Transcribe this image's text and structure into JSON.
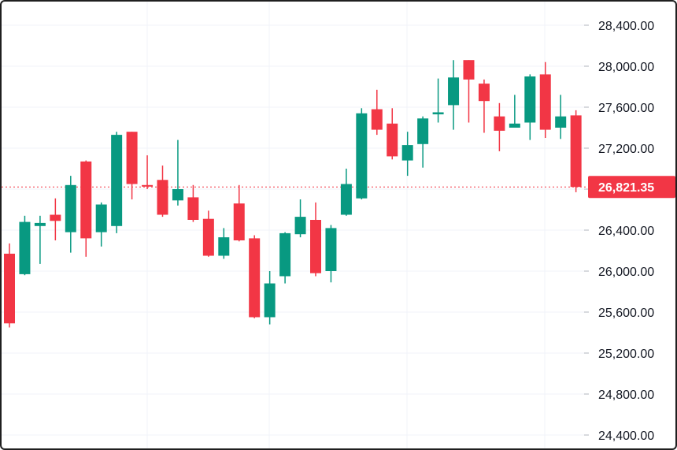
{
  "chart_data": {
    "type": "candlestick",
    "ylim": [
      24300,
      28500
    ],
    "y_ticks": [
      "28,400.00",
      "28,000.00",
      "27,600.00",
      "27,200.00",
      "26,800.00",
      "26,400.00",
      "26,000.00",
      "25,600.00",
      "25,200.00",
      "24,800.00",
      "24,400.00"
    ],
    "y_tick_values": [
      28400,
      28000,
      27600,
      27200,
      26800,
      26400,
      26000,
      25600,
      25200,
      24800,
      24400
    ],
    "last_price": 26821.35,
    "last_price_label": "26,821.35",
    "colors": {
      "up": "#089981",
      "down": "#f23645",
      "grid": "#f0f3fa",
      "axis_text": "#131722"
    },
    "candles": [
      {
        "o": 26170,
        "h": 26270,
        "l": 25450,
        "c": 25490
      },
      {
        "o": 25970,
        "h": 26540,
        "l": 25960,
        "c": 26480
      },
      {
        "o": 26440,
        "h": 26540,
        "l": 26070,
        "c": 26470
      },
      {
        "o": 26550,
        "h": 26710,
        "l": 26300,
        "c": 26490
      },
      {
        "o": 26380,
        "h": 26930,
        "l": 26180,
        "c": 26840
      },
      {
        "o": 27070,
        "h": 27080,
        "l": 26140,
        "c": 26320
      },
      {
        "o": 26380,
        "h": 26670,
        "l": 26240,
        "c": 26650
      },
      {
        "o": 26440,
        "h": 27360,
        "l": 26370,
        "c": 27330
      },
      {
        "o": 27360,
        "h": 27360,
        "l": 26700,
        "c": 26850
      },
      {
        "o": 26840,
        "h": 27130,
        "l": 26800,
        "c": 26830
      },
      {
        "o": 26890,
        "h": 27030,
        "l": 26530,
        "c": 26550
      },
      {
        "o": 26690,
        "h": 27280,
        "l": 26640,
        "c": 26800
      },
      {
        "o": 26720,
        "h": 26840,
        "l": 26480,
        "c": 26500
      },
      {
        "o": 26510,
        "h": 26590,
        "l": 26140,
        "c": 26150
      },
      {
        "o": 26150,
        "h": 26420,
        "l": 26120,
        "c": 26330
      },
      {
        "o": 26660,
        "h": 26840,
        "l": 26290,
        "c": 26300
      },
      {
        "o": 26320,
        "h": 26350,
        "l": 25540,
        "c": 25550
      },
      {
        "o": 25550,
        "h": 26000,
        "l": 25480,
        "c": 25880
      },
      {
        "o": 25950,
        "h": 26380,
        "l": 25880,
        "c": 26370
      },
      {
        "o": 26360,
        "h": 26700,
        "l": 26330,
        "c": 26530
      },
      {
        "o": 26500,
        "h": 26670,
        "l": 25950,
        "c": 25980
      },
      {
        "o": 26000,
        "h": 26450,
        "l": 25890,
        "c": 26420
      },
      {
        "o": 26550,
        "h": 27000,
        "l": 26540,
        "c": 26850
      },
      {
        "o": 26710,
        "h": 27590,
        "l": 26700,
        "c": 27540
      },
      {
        "o": 27580,
        "h": 27770,
        "l": 27330,
        "c": 27380
      },
      {
        "o": 27440,
        "h": 27590,
        "l": 27090,
        "c": 27120
      },
      {
        "o": 27080,
        "h": 27360,
        "l": 26930,
        "c": 27230
      },
      {
        "o": 27240,
        "h": 27510,
        "l": 27010,
        "c": 27490
      },
      {
        "o": 27530,
        "h": 27880,
        "l": 27450,
        "c": 27550
      },
      {
        "o": 27620,
        "h": 28060,
        "l": 27380,
        "c": 27890
      },
      {
        "o": 28060,
        "h": 28060,
        "l": 27450,
        "c": 27870
      },
      {
        "o": 27830,
        "h": 27870,
        "l": 27350,
        "c": 27660
      },
      {
        "o": 27510,
        "h": 27640,
        "l": 27170,
        "c": 27370
      },
      {
        "o": 27400,
        "h": 27720,
        "l": 27400,
        "c": 27440
      },
      {
        "o": 27450,
        "h": 27920,
        "l": 27280,
        "c": 27900
      },
      {
        "o": 27920,
        "h": 28040,
        "l": 27300,
        "c": 27380
      },
      {
        "o": 27400,
        "h": 27720,
        "l": 27290,
        "c": 27510
      },
      {
        "o": 27520,
        "h": 27570,
        "l": 26770,
        "c": 26821.35
      }
    ]
  }
}
